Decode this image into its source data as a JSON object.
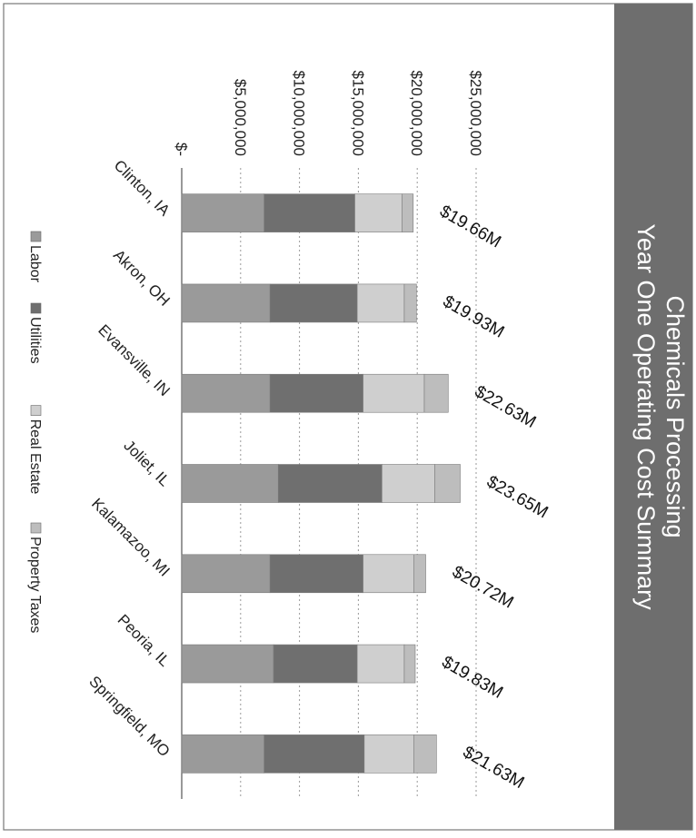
{
  "chart_data": {
    "type": "bar",
    "stacked": true,
    "title": "Chemicals Processing",
    "subtitle": "Year One Operating Cost Summary",
    "categories": [
      "Clinton, IA",
      "Akron, OH",
      "Evansville, IN",
      "Joliet, IL",
      "Kalamazoo, MI",
      "Peoria, IL",
      "Springfield, MO"
    ],
    "series": [
      {
        "name": "Labor",
        "color": "#9a9a9a",
        "values": [
          7000000,
          7500000,
          7500000,
          8200000,
          7500000,
          7800000,
          7000000
        ]
      },
      {
        "name": "Utilities",
        "color": "#6f6f6f",
        "values": [
          7700000,
          7400000,
          7900000,
          8800000,
          7900000,
          7100000,
          8500000
        ]
      },
      {
        "name": "Real Estate",
        "color": "#cfcfcf",
        "values": [
          4000000,
          4000000,
          5200000,
          4500000,
          4300000,
          4000000,
          4200000
        ]
      },
      {
        "name": "Property Taxes",
        "color": "#bdbdbd",
        "values": [
          960000,
          1030000,
          2030000,
          2150000,
          1020000,
          930000,
          1930000
        ]
      }
    ],
    "totals_labels": [
      "$19.66M",
      "$19.93M",
      "$22.63M",
      "$23.65M",
      "$20.72M",
      "$19.83M",
      "$21.63M"
    ],
    "y_ticks": [
      0,
      5000000,
      10000000,
      15000000,
      20000000,
      25000000
    ],
    "y_tick_labels": [
      "$-",
      "$5,000,000",
      "$10,000,000",
      "$15,000,000",
      "$20,000,000",
      "$25,000,000"
    ],
    "ylim": [
      0,
      25000000
    ],
    "grid": true,
    "legend_position": "bottom",
    "orientation": "rotated-90-clockwise"
  }
}
